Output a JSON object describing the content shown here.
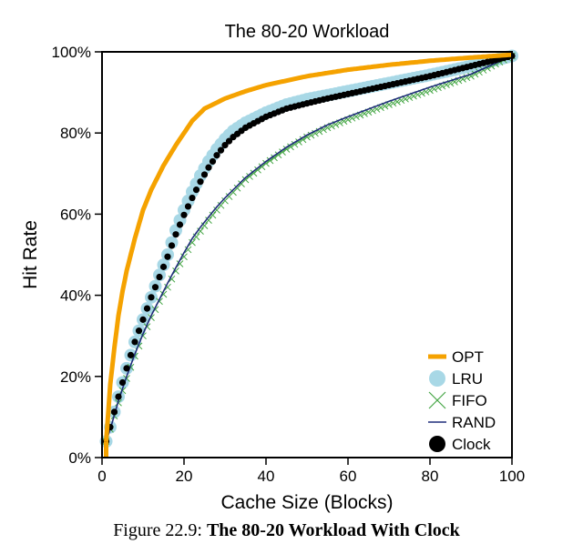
{
  "chart_data": {
    "type": "line",
    "title": "The 80-20 Workload",
    "xlabel": "Cache Size (Blocks)",
    "ylabel": "Hit Rate",
    "xlim": [
      0,
      100
    ],
    "ylim": [
      0,
      100
    ],
    "x_ticks": [
      0,
      20,
      40,
      60,
      80,
      100
    ],
    "y_ticks": [
      0,
      20,
      40,
      60,
      80,
      100
    ],
    "y_tick_labels": [
      "0%",
      "20%",
      "40%",
      "60%",
      "80%",
      "100%"
    ],
    "legend_position": "bottom-right",
    "series": [
      {
        "name": "OPT",
        "marker": "line",
        "color": "#f5a200",
        "x": [
          1,
          2,
          3,
          4,
          5,
          6,
          8,
          10,
          12,
          15,
          18,
          20,
          22,
          25,
          30,
          35,
          40,
          50,
          60,
          70,
          80,
          90,
          100
        ],
        "y": [
          4,
          18,
          27,
          35,
          41,
          46,
          54,
          61,
          66,
          72,
          77,
          80,
          83,
          86,
          88.5,
          90.3,
          91.8,
          94,
          95.6,
          96.8,
          97.8,
          98.6,
          99.3
        ]
      },
      {
        "name": "LRU",
        "marker": "circle",
        "color": "#a8d8e6",
        "x": [
          1,
          2,
          4,
          6,
          8,
          10,
          12,
          14,
          16,
          18,
          20,
          22,
          24,
          26,
          28,
          30,
          32,
          35,
          40,
          45,
          50,
          55,
          60,
          70,
          80,
          90,
          100
        ],
        "y": [
          4,
          7.5,
          15,
          22,
          28.5,
          34,
          39.5,
          45,
          50,
          56,
          61,
          65.5,
          69.5,
          73,
          76,
          78.5,
          80.5,
          82.5,
          85,
          87,
          88.3,
          89.3,
          90.3,
          92.3,
          94.3,
          96.5,
          99
        ]
      },
      {
        "name": "FIFO",
        "marker": "x",
        "color": "#45a645",
        "x": [
          1,
          2,
          4,
          6,
          8,
          10,
          12,
          14,
          16,
          18,
          20,
          22,
          24,
          26,
          28,
          30,
          35,
          40,
          45,
          50,
          55,
          60,
          70,
          80,
          90,
          100
        ],
        "y": [
          4,
          7,
          13.5,
          19.5,
          25,
          30,
          34.5,
          38.5,
          42,
          46,
          49.5,
          53,
          55.8,
          58.5,
          61,
          63.3,
          68.5,
          72.5,
          76,
          79,
          81.3,
          83.3,
          87,
          90.5,
          94,
          99
        ]
      },
      {
        "name": "RAND",
        "marker": "line",
        "color": "#1f2d7a",
        "x": [
          1,
          2,
          4,
          6,
          8,
          10,
          12,
          14,
          16,
          18,
          20,
          22,
          24,
          26,
          28,
          30,
          35,
          40,
          45,
          50,
          55,
          60,
          70,
          80,
          90,
          100
        ],
        "y": [
          4,
          7,
          14,
          20,
          25.5,
          30.5,
          35,
          39,
          43,
          46.8,
          50.5,
          54,
          56.8,
          59.3,
          61.8,
          64,
          69,
          73,
          76.5,
          79.5,
          82,
          84,
          87.8,
          91.3,
          94.5,
          99
        ]
      },
      {
        "name": "Clock",
        "marker": "dot",
        "color": "#000000",
        "x": [
          1,
          2,
          4,
          6,
          8,
          10,
          12,
          14,
          16,
          18,
          20,
          22,
          24,
          26,
          28,
          30,
          32,
          35,
          40,
          45,
          50,
          55,
          60,
          70,
          80,
          90,
          100
        ],
        "y": [
          4,
          7.5,
          15,
          22,
          28.5,
          34,
          39.5,
          44.5,
          49.5,
          55,
          59.8,
          64,
          68,
          71.5,
          74.5,
          77,
          79,
          81.3,
          84,
          86,
          87.3,
          88.5,
          89.6,
          91.8,
          94,
          96.5,
          99
        ]
      }
    ]
  },
  "caption": {
    "prefix": "Figure 22.9: ",
    "bold": "The 80-20 Workload With Clock"
  }
}
